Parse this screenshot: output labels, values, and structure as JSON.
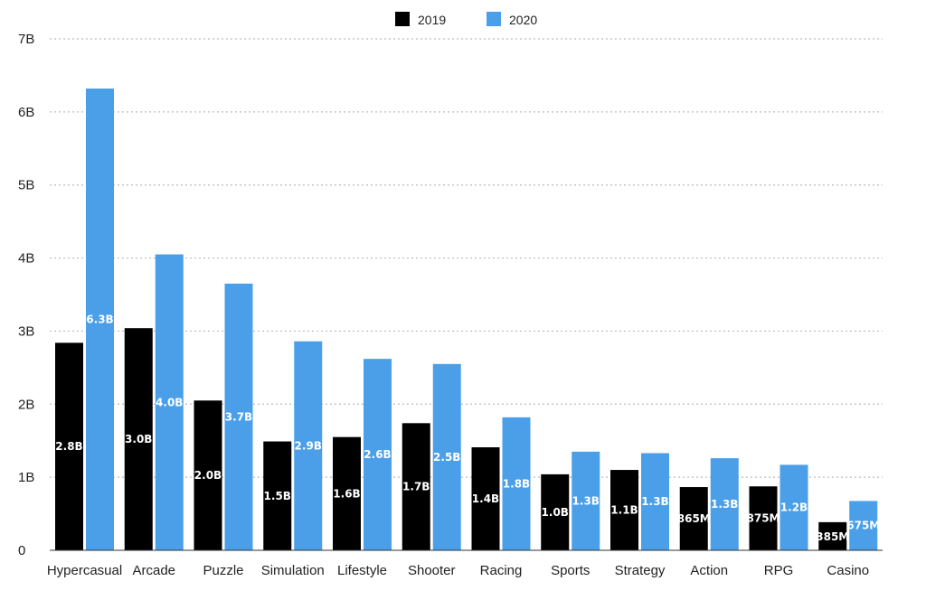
{
  "chart_data": {
    "type": "bar",
    "categories": [
      "Hypercasual",
      "Arcade",
      "Puzzle",
      "Simulation",
      "Lifestyle",
      "Shooter",
      "Racing",
      "Sports",
      "Strategy",
      "Action",
      "RPG",
      "Casino"
    ],
    "series": [
      {
        "name": "2019",
        "color": "#000000",
        "values": [
          2.84,
          3.04,
          2.05,
          1.49,
          1.55,
          1.74,
          1.41,
          1.04,
          1.1,
          0.865,
          0.875,
          0.385
        ],
        "labels": [
          "2.8B",
          "3.0B",
          "2.0B",
          "1.5B",
          "1.6B",
          "1.7B",
          "1.4B",
          "1.0B",
          "1.1B",
          "865M",
          "875M",
          "385M"
        ]
      },
      {
        "name": "2020",
        "color": "#4a9fe8",
        "values": [
          6.32,
          4.05,
          3.65,
          2.86,
          2.62,
          2.55,
          1.82,
          1.35,
          1.33,
          1.26,
          1.17,
          0.675
        ],
        "labels": [
          "6.3B",
          "4.0B",
          "3.7B",
          "2.9B",
          "2.6B",
          "2.5B",
          "1.8B",
          "1.3B",
          "1.3B",
          "1.3B",
          "1.2B",
          "675M"
        ]
      }
    ],
    "yticks": [
      0,
      1,
      2,
      3,
      4,
      5,
      6,
      7
    ],
    "ytick_labels": [
      "0",
      "1B",
      "2B",
      "3B",
      "4B",
      "5B",
      "6B",
      "7B"
    ],
    "ylim": [
      0,
      7
    ],
    "grid": true,
    "legend_position": "top-center"
  }
}
